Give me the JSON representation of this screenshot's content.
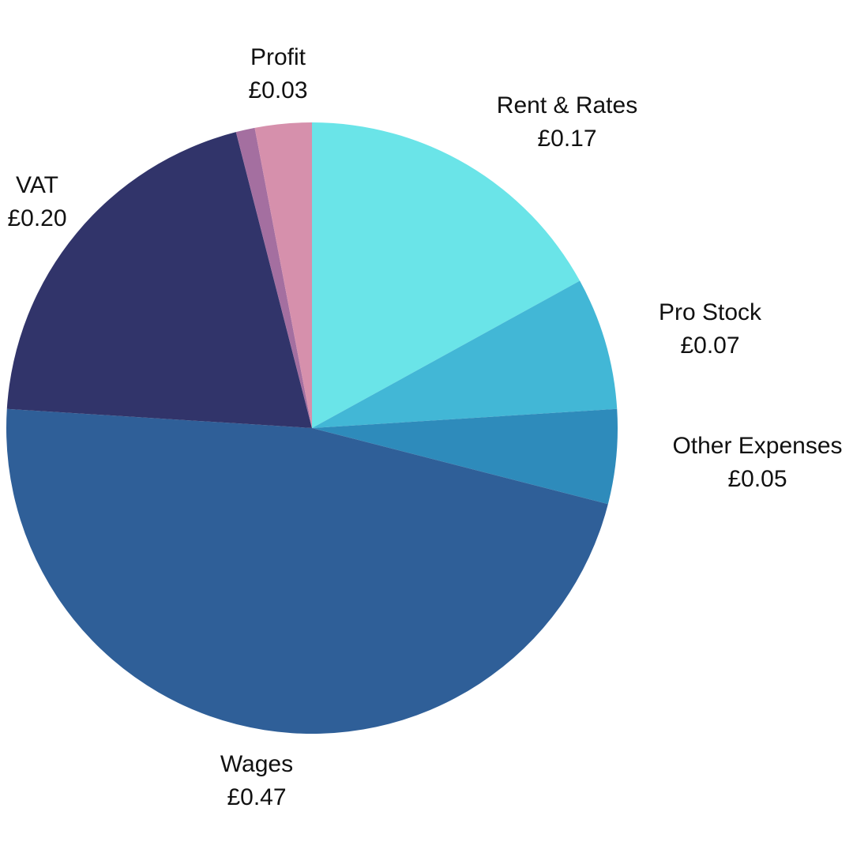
{
  "chart_data": {
    "type": "pie",
    "title": "",
    "slices": [
      {
        "label": "Rent & Rates",
        "value_label": "£0.17",
        "value": 0.17,
        "color": "#6ae4e8"
      },
      {
        "label": "Pro Stock",
        "value_label": "£0.07",
        "value": 0.07,
        "color": "#42b7d6"
      },
      {
        "label": "Other Expenses",
        "value_label": "£0.05",
        "value": 0.05,
        "color": "#2e8bbb"
      },
      {
        "label": "Wages",
        "value_label": "£0.47",
        "value": 0.47,
        "color": "#2f5f98"
      },
      {
        "label": "VAT",
        "value_label": "£0.20",
        "value": 0.2,
        "color": "#31346a"
      },
      {
        "label": "",
        "value_label": "",
        "value": 0.01,
        "color": "#a46fa0"
      },
      {
        "label": "Profit",
        "value_label": "£0.03",
        "value": 0.03,
        "color": "#d690ac"
      }
    ]
  }
}
